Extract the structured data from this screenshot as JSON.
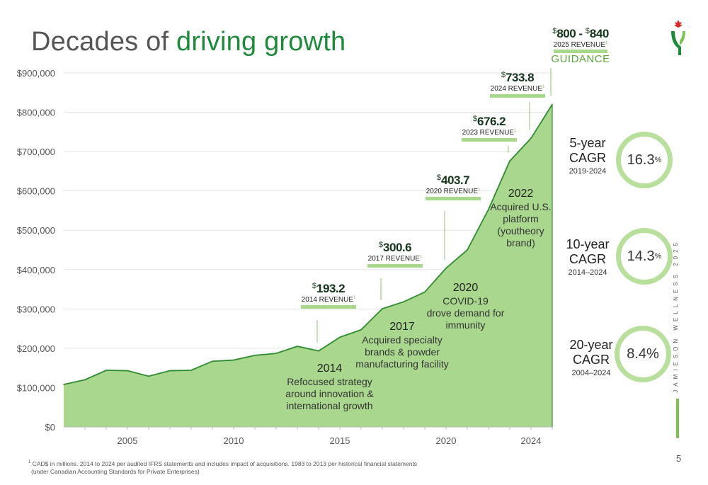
{
  "title": {
    "prefix": "Decades of ",
    "accent": "driving growth"
  },
  "chart_data": {
    "type": "area",
    "title": "Decades of driving growth",
    "xlabel": "",
    "ylabel": "",
    "x_ticks": [
      "2005",
      "2010",
      "2015",
      "2020",
      "2024"
    ],
    "y_ticks": [
      "$0",
      "$100,000",
      "$200,000",
      "$300,000",
      "$400,000",
      "$500,000",
      "$600,000",
      "$700,000",
      "$800,000",
      "$900,000"
    ],
    "xlim": [
      2002,
      2025
    ],
    "ylim": [
      0,
      900000
    ],
    "grid": true,
    "x": [
      2002,
      2003,
      2004,
      2005,
      2006,
      2007,
      2008,
      2009,
      2010,
      2011,
      2012,
      2013,
      2014,
      2015,
      2016,
      2017,
      2018,
      2019,
      2020,
      2021,
      2022,
      2023,
      2024,
      2025
    ],
    "values": [
      108000,
      120000,
      144000,
      143000,
      129000,
      143000,
      144000,
      167000,
      170000,
      182000,
      187000,
      205000,
      193200,
      228000,
      247000,
      300600,
      318000,
      343000,
      403700,
      450000,
      553000,
      676200,
      733800,
      820000
    ],
    "fill_color": "#a9d78e",
    "line_color": "#2e8b30"
  },
  "callouts": [
    {
      "currency": "$",
      "value": "193.2",
      "label": "2014 REVENUE",
      "sup": "1"
    },
    {
      "currency": "$",
      "value": "300.6",
      "label": "2017 REVENUE",
      "sup": "1"
    },
    {
      "currency": "$",
      "value": "403.7",
      "label": "2020 REVENUE",
      "sup": "1"
    },
    {
      "currency": "$",
      "value": "676.2",
      "label": "2023 REVENUE",
      "sup": "1"
    },
    {
      "currency": "$",
      "value": "733.8",
      "label": "2024 REVENUE",
      "sup": "1"
    }
  ],
  "guidance": {
    "cur1": "$",
    "v1": "800",
    "dash": " - ",
    "cur2": "$",
    "v2": "840",
    "label": "2025 REVENUE",
    "sup": "1",
    "guidance": "GUIDANCE"
  },
  "events": [
    {
      "year": "2014",
      "text": [
        "Refocused strategy",
        "around innovation &",
        "international growth"
      ]
    },
    {
      "year": "2017",
      "text": [
        "Acquired specialty",
        "brands & powder",
        "manufacturing facility"
      ]
    },
    {
      "year": "2020",
      "text": [
        "COVID-19",
        "drove demand for",
        "immunity"
      ]
    },
    {
      "year": "2022",
      "text": [
        "Acquired U.S.",
        "platform",
        "(youtheory",
        "brand)"
      ]
    }
  ],
  "cagr": [
    {
      "label1": "5-year",
      "label2": "CAGR",
      "range": "2019-2024",
      "value": "16.3",
      "pct": "%"
    },
    {
      "label1": "10-year",
      "label2": "CAGR",
      "range": "2014–2024",
      "value": "14.3",
      "pct": "%"
    },
    {
      "label1": "20-year",
      "label2": "CAGR",
      "range": "2004–2024",
      "value": "8.4%",
      "pct": ""
    }
  ],
  "brand_vertical": "JAMIESON WELLNESS 2025",
  "page_number": "5",
  "footnote": {
    "sup": "1",
    "line1": " CAD$ in millions. 2014 to 2024 per audited IFRS statements and includes impact of acquisitions. 1983 to 2013 per historical financial statements",
    "line2": "(under Canadian Accounting Standards for Private Enterprises)"
  },
  "colors": {
    "accent": "#1f8a3c",
    "area": "#a9d78e",
    "ring": "#b8e09c",
    "callout_bar": "#a8d88c"
  }
}
